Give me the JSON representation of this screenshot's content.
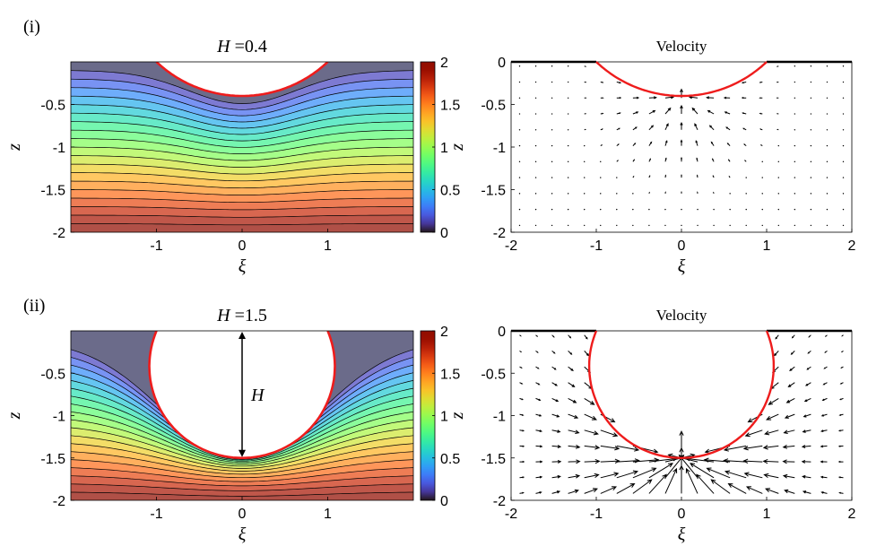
{
  "colorbar": {
    "ticks": [
      0,
      0.5,
      1,
      1.5,
      2
    ]
  },
  "colors": {
    "interface": "#ee1c1c",
    "arrows": "#000000",
    "background_top": "#6b6b8a"
  },
  "chart_data": [
    {
      "type": "heatmap",
      "panel_label": "(i)",
      "title_var": "H",
      "title_eq": "=0.4",
      "H": 0.4,
      "xlabel": "ξ",
      "ylabel": "z",
      "xlim": [
        -2,
        2
      ],
      "ylim": [
        -2,
        0
      ],
      "xticks": [
        -1,
        0,
        1
      ],
      "yticks": [
        -0.5,
        -1,
        -1.5,
        -2
      ],
      "ytick_labels": [
        "-0.5",
        "-1",
        "-1.5",
        "-2"
      ],
      "clim": [
        0,
        2
      ],
      "colormap": "turbo",
      "contour_lines": 20
    },
    {
      "type": "scatter",
      "title": "Velocity",
      "H": 0.4,
      "xlabel": "ξ",
      "ylabel": "z",
      "xlim": [
        -2,
        2
      ],
      "ylim": [
        -2,
        0
      ],
      "xticks": [
        -2,
        -1,
        0,
        1,
        2
      ],
      "yticks": [
        0,
        -0.5,
        -1,
        -1.5,
        -2
      ],
      "ytick_labels": [
        "0",
        "-0.5",
        "-1",
        "-1.5",
        "-2"
      ],
      "field": "quiver"
    },
    {
      "type": "heatmap",
      "panel_label": "(ii)",
      "title_var": "H",
      "title_eq": "=1.5",
      "H": 1.5,
      "annotation": "H",
      "xlabel": "ξ",
      "ylabel": "z",
      "xlim": [
        -2,
        2
      ],
      "ylim": [
        -2,
        0
      ],
      "xticks": [
        -1,
        0,
        1
      ],
      "yticks": [
        -0.5,
        -1,
        -1.5,
        -2
      ],
      "ytick_labels": [
        "-0.5",
        "-1",
        "-1.5",
        "-2"
      ],
      "clim": [
        0,
        2
      ],
      "colormap": "turbo",
      "contour_lines": 20
    },
    {
      "type": "scatter",
      "title": "Velocity",
      "H": 1.5,
      "xlabel": "ξ",
      "ylabel": "z",
      "xlim": [
        -2,
        2
      ],
      "ylim": [
        -2,
        0
      ],
      "xticks": [
        -2,
        -1,
        0,
        1,
        2
      ],
      "yticks": [
        0,
        -0.5,
        -1,
        -1.5,
        -2
      ],
      "ytick_labels": [
        "0",
        "-0.5",
        "-1",
        "-1.5",
        "-2"
      ],
      "field": "quiver"
    }
  ]
}
